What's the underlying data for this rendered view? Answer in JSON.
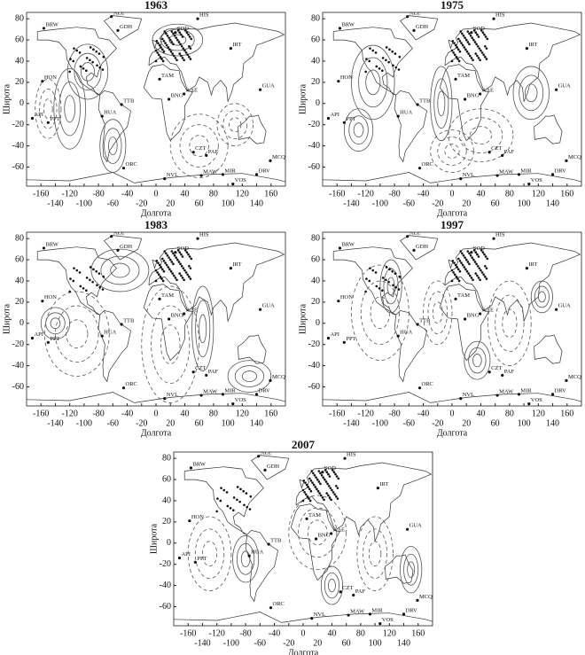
{
  "panels": [
    {
      "title": "1963"
    },
    {
      "title": "1975"
    },
    {
      "title": "1983"
    },
    {
      "title": "1997"
    },
    {
      "title": "2007"
    }
  ],
  "x_label": "Долгота",
  "y_label": "Широта",
  "xticks": [
    -160,
    -140,
    -120,
    -100,
    -80,
    -60,
    -40,
    -20,
    0,
    20,
    40,
    60,
    80,
    100,
    120,
    140,
    160
  ],
  "yticks": [
    -60,
    -40,
    -20,
    0,
    20,
    40,
    60,
    80
  ],
  "stations": [
    "ALE",
    "HIS",
    "BRW",
    "GDH",
    "HON",
    "API",
    "PPT",
    "TAM",
    "BNG",
    "MIR",
    "DRV",
    "NVL",
    "MAW",
    "CZT",
    "PAF",
    "GUA",
    "AAE",
    "IRT",
    "TTB",
    "HUA",
    "ORC",
    "MCQ",
    "SOD",
    "VOS"
  ]
}
